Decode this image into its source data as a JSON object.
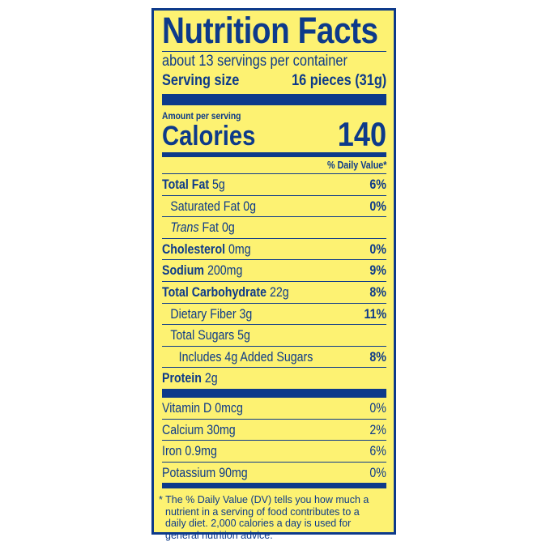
{
  "title": "Nutrition Facts",
  "servings": "about 13 servings per container",
  "serving_size": {
    "label": "Serving size",
    "value": "16 pieces (31g)"
  },
  "amount_per_serving": "Amount per serving",
  "calories": {
    "label": "Calories",
    "value": "140"
  },
  "daily_value_header": "% Daily Value*",
  "nutrients": [
    {
      "name": "Total Fat",
      "amount": "5g",
      "dv": "6%",
      "bold": true,
      "indent": 0
    },
    {
      "name": "Saturated Fat",
      "amount": "0g",
      "dv": "0%",
      "bold": false,
      "indent": 1
    },
    {
      "name": "Trans",
      "name_suffix": "Fat",
      "amount": "0g",
      "dv": "",
      "bold": false,
      "indent": 1
    },
    {
      "name": "Cholesterol",
      "amount": "0mg",
      "dv": "0%",
      "bold": true,
      "indent": 0
    },
    {
      "name": "Sodium",
      "amount": "200mg",
      "dv": "9%",
      "bold": true,
      "indent": 0
    },
    {
      "name": "Total Carbohydrate",
      "amount": "22g",
      "dv": "8%",
      "bold": true,
      "indent": 0
    },
    {
      "name": "Dietary Fiber",
      "amount": "3g",
      "dv": "11%",
      "bold": false,
      "indent": 1
    },
    {
      "name": "Total Sugars",
      "amount": "5g",
      "dv": "",
      "bold": false,
      "indent": 1
    },
    {
      "name": "Includes 4g Added Sugars",
      "amount": "",
      "dv": "8%",
      "bold": false,
      "indent": 2
    },
    {
      "name": "Protein",
      "amount": "2g",
      "dv": "",
      "bold": true,
      "indent": 0
    }
  ],
  "vitamins": [
    {
      "name": "Vitamin D 0mcg",
      "dv": "0%"
    },
    {
      "name": "Calcium 30mg",
      "dv": "2%"
    },
    {
      "name": "Iron 0.9mg",
      "dv": "6%"
    },
    {
      "name": "Potassium 90mg",
      "dv": "0%"
    }
  ],
  "footnote": "* The % Daily Value (DV) tells you how much a nutrient in a serving of food contributes to a daily diet. 2,000 calories a day is used for general nutrition advice.",
  "colors": {
    "background": "#fdf272",
    "ink": "#0d3a8a"
  }
}
